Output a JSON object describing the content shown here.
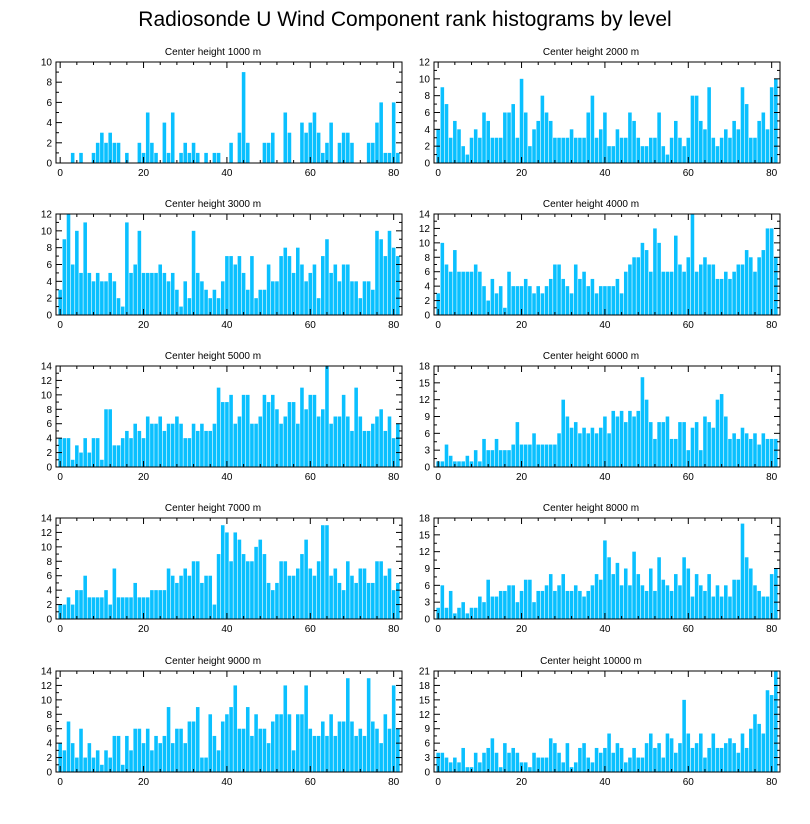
{
  "title": "Radiosonde U Wind Component rank histograms by level",
  "colors": {
    "bar": "#0ac0ff",
    "axis": "#000000",
    "background": "#ffffff"
  },
  "chart_data": [
    {
      "type": "bar",
      "title": "Center height 1000 m",
      "xlim": [
        -1,
        82
      ],
      "ylim": [
        0,
        10
      ],
      "xticks": [
        0,
        20,
        40,
        60,
        80
      ],
      "yticks": [
        0,
        2,
        4,
        6,
        8,
        10
      ],
      "values": [
        0,
        0,
        0,
        1,
        0,
        1,
        0,
        0,
        1,
        2,
        3,
        2,
        3,
        2,
        2,
        0,
        1,
        0,
        0,
        2,
        1,
        5,
        2,
        1,
        0,
        4,
        1,
        5,
        0,
        1,
        2,
        1,
        2,
        1,
        0,
        1,
        0,
        1,
        1,
        0,
        0,
        2,
        0,
        3,
        9,
        2,
        0,
        0,
        0,
        2,
        2,
        3,
        0,
        0,
        5,
        3,
        0,
        0,
        4,
        3,
        4,
        5,
        3,
        1,
        2,
        4,
        0,
        2,
        3,
        3,
        2,
        0,
        0,
        0,
        2,
        2,
        4,
        6,
        1,
        1,
        6,
        1
      ]
    },
    {
      "type": "bar",
      "title": "Center height 2000 m",
      "xlim": [
        -1,
        82
      ],
      "ylim": [
        0,
        12
      ],
      "xticks": [
        0,
        20,
        40,
        60,
        80
      ],
      "yticks": [
        0,
        2,
        4,
        6,
        8,
        10,
        12
      ],
      "values": [
        4,
        9,
        7,
        3,
        5,
        4,
        2,
        1,
        3,
        4,
        3,
        6,
        5,
        3,
        3,
        3,
        6,
        6,
        7,
        3,
        10,
        6,
        2,
        4,
        5,
        8,
        6,
        5,
        3,
        3,
        3,
        3,
        4,
        3,
        3,
        3,
        6,
        8,
        3,
        4,
        6,
        2,
        2,
        4,
        3,
        3,
        6,
        5,
        3,
        2,
        2,
        3,
        3,
        6,
        2,
        1,
        3,
        5,
        3,
        2,
        3,
        8,
        8,
        5,
        4,
        9,
        3,
        2,
        3,
        4,
        3,
        5,
        4,
        9,
        7,
        3,
        3,
        5,
        6,
        4,
        9,
        10
      ]
    },
    {
      "type": "bar",
      "title": "Center height 3000 m",
      "xlim": [
        -1,
        82
      ],
      "ylim": [
        0,
        12
      ],
      "xticks": [
        0,
        20,
        40,
        60,
        80
      ],
      "yticks": [
        0,
        2,
        4,
        6,
        8,
        10,
        12
      ],
      "values": [
        3,
        9,
        12,
        6,
        10,
        5,
        11,
        5,
        4,
        5,
        4,
        4,
        5,
        4,
        2,
        1,
        11,
        5,
        6,
        10,
        5,
        5,
        5,
        5,
        6,
        5,
        4,
        5,
        3,
        1,
        4,
        2,
        10,
        5,
        4,
        3,
        2,
        3,
        2,
        4,
        7,
        7,
        6,
        7,
        5,
        3,
        7,
        2,
        3,
        3,
        6,
        4,
        4,
        7,
        8,
        7,
        5,
        8,
        6,
        4,
        5,
        6,
        2,
        7,
        9,
        5,
        6,
        4,
        6,
        6,
        4,
        4,
        2,
        4,
        4,
        3,
        10,
        9,
        7,
        10,
        8,
        7
      ]
    },
    {
      "type": "bar",
      "title": "Center height 4000 m",
      "xlim": [
        -1,
        82
      ],
      "ylim": [
        0,
        14
      ],
      "xticks": [
        0,
        20,
        40,
        60,
        80
      ],
      "yticks": [
        0,
        2,
        4,
        6,
        8,
        10,
        12,
        14
      ],
      "values": [
        3,
        10,
        7,
        6,
        9,
        6,
        6,
        6,
        6,
        7,
        6,
        4,
        2,
        5,
        3,
        4,
        1,
        6,
        4,
        4,
        4,
        5,
        4,
        3,
        4,
        3,
        4,
        5,
        7,
        7,
        5,
        4,
        3,
        7,
        5,
        6,
        4,
        5,
        3,
        4,
        4,
        4,
        4,
        5,
        3,
        6,
        7,
        8,
        8,
        10,
        9,
        6,
        12,
        10,
        6,
        6,
        6,
        11,
        7,
        6,
        8,
        14,
        6,
        7,
        8,
        7,
        7,
        5,
        5,
        6,
        5,
        6,
        7,
        7,
        9,
        8,
        6,
        8,
        9,
        12,
        12,
        8
      ]
    },
    {
      "type": "bar",
      "title": "Center height 5000 m",
      "xlim": [
        -1,
        82
      ],
      "ylim": [
        0,
        14
      ],
      "xticks": [
        0,
        20,
        40,
        60,
        80
      ],
      "yticks": [
        0,
        2,
        4,
        6,
        8,
        10,
        12,
        14
      ],
      "values": [
        4,
        4,
        4,
        1,
        3,
        2,
        4,
        2,
        4,
        4,
        1,
        8,
        8,
        3,
        3,
        4,
        5,
        4,
        6,
        5,
        4,
        7,
        6,
        6,
        7,
        5,
        6,
        6,
        7,
        6,
        4,
        4,
        6,
        5,
        6,
        5,
        5,
        6,
        11,
        9,
        9,
        10,
        6,
        7,
        10,
        10,
        6,
        6,
        7,
        10,
        9,
        10,
        8,
        6,
        7,
        9,
        9,
        6,
        11,
        8,
        10,
        10,
        7,
        8,
        14,
        6,
        7,
        7,
        10,
        7,
        5,
        11,
        7,
        5,
        5,
        6,
        7,
        8,
        5,
        7,
        4,
        6
      ]
    },
    {
      "type": "bar",
      "title": "Center height 6000 m",
      "xlim": [
        -1,
        82
      ],
      "ylim": [
        0,
        18
      ],
      "xticks": [
        0,
        20,
        40,
        60,
        80
      ],
      "yticks": [
        0,
        3,
        6,
        9,
        12,
        15,
        18
      ],
      "values": [
        1,
        1,
        4,
        2,
        1,
        1,
        1,
        2,
        1,
        3,
        1,
        5,
        3,
        3,
        5,
        3,
        3,
        3,
        4,
        8,
        4,
        4,
        4,
        6,
        4,
        4,
        4,
        4,
        4,
        6,
        12,
        9,
        7,
        8,
        6,
        7,
        6,
        7,
        6,
        7,
        9,
        6,
        10,
        9,
        10,
        8,
        10,
        9,
        10,
        16,
        12,
        8,
        5,
        8,
        8,
        9,
        5,
        5,
        8,
        8,
        3,
        7,
        8,
        3,
        9,
        8,
        7,
        12,
        13,
        9,
        5,
        6,
        5,
        7,
        6,
        5,
        6,
        4,
        6,
        5,
        5,
        5
      ]
    },
    {
      "type": "bar",
      "title": "Center height 7000 m",
      "xlim": [
        -1,
        82
      ],
      "ylim": [
        0,
        14
      ],
      "xticks": [
        0,
        20,
        40,
        60,
        80
      ],
      "yticks": [
        0,
        2,
        4,
        6,
        8,
        10,
        12,
        14
      ],
      "values": [
        2,
        2,
        3,
        2,
        4,
        4,
        6,
        3,
        3,
        3,
        3,
        4,
        2,
        7,
        3,
        3,
        3,
        3,
        5,
        3,
        3,
        3,
        4,
        4,
        4,
        4,
        7,
        6,
        5,
        6,
        7,
        6,
        8,
        8,
        5,
        6,
        6,
        2,
        9,
        13,
        12,
        8,
        12,
        11,
        9,
        8,
        8,
        10,
        11,
        9,
        5,
        4,
        5,
        8,
        8,
        6,
        6,
        7,
        9,
        11,
        7,
        6,
        8,
        13,
        13,
        6,
        7,
        5,
        4,
        8,
        6,
        5,
        7,
        7,
        5,
        5,
        8,
        8,
        6,
        7,
        4,
        5
      ]
    },
    {
      "type": "bar",
      "title": "Center height 8000 m",
      "xlim": [
        -1,
        82
      ],
      "ylim": [
        0,
        18
      ],
      "xticks": [
        0,
        20,
        40,
        60,
        80
      ],
      "yticks": [
        0,
        3,
        6,
        9,
        12,
        15,
        18
      ],
      "values": [
        2,
        6,
        2,
        5,
        1,
        2,
        3,
        1,
        2,
        2,
        4,
        3,
        7,
        4,
        4,
        5,
        5,
        6,
        6,
        3,
        5,
        7,
        7,
        3,
        5,
        5,
        6,
        8,
        5,
        6,
        8,
        5,
        5,
        6,
        5,
        4,
        5,
        6,
        8,
        7,
        14,
        11,
        8,
        10,
        6,
        9,
        6,
        12,
        8,
        6,
        5,
        9,
        5,
        11,
        7,
        6,
        5,
        8,
        6,
        11,
        9,
        4,
        8,
        6,
        5,
        8,
        4,
        6,
        4,
        6,
        4,
        7,
        7,
        17,
        11,
        9,
        6,
        5,
        4,
        4,
        8,
        9
      ]
    },
    {
      "type": "bar",
      "title": "Center height 9000 m",
      "xlim": [
        -1,
        82
      ],
      "ylim": [
        0,
        14
      ],
      "xticks": [
        0,
        20,
        40,
        60,
        80
      ],
      "yticks": [
        0,
        2,
        4,
        6,
        8,
        10,
        12,
        14
      ],
      "values": [
        4,
        3,
        7,
        4,
        2,
        6,
        2,
        4,
        2,
        3,
        1,
        3,
        2,
        5,
        5,
        1,
        5,
        3,
        6,
        6,
        4,
        6,
        3,
        5,
        4,
        5,
        9,
        4,
        6,
        6,
        4,
        7,
        7,
        9,
        2,
        2,
        8,
        5,
        3,
        7,
        8,
        9,
        12,
        6,
        6,
        9,
        5,
        8,
        6,
        6,
        4,
        7,
        8,
        8,
        12,
        8,
        3,
        8,
        8,
        12,
        6,
        5,
        5,
        7,
        5,
        8,
        5,
        7,
        7,
        13,
        7,
        5,
        6,
        5,
        13,
        7,
        6,
        4,
        8,
        6,
        12,
        6
      ]
    },
    {
      "type": "bar",
      "title": "Center height 10000 m",
      "xlim": [
        -1,
        82
      ],
      "ylim": [
        0,
        21
      ],
      "xticks": [
        0,
        20,
        40,
        60,
        80
      ],
      "yticks": [
        0,
        3,
        6,
        9,
        12,
        15,
        18,
        21
      ],
      "values": [
        4,
        4,
        3,
        2,
        3,
        2,
        5,
        1,
        1,
        4,
        2,
        4,
        5,
        7,
        4,
        1,
        6,
        4,
        5,
        4,
        2,
        2,
        1,
        4,
        3,
        3,
        3,
        7,
        6,
        4,
        2,
        6,
        1,
        2,
        5,
        6,
        3,
        2,
        5,
        4,
        5,
        8,
        4,
        6,
        5,
        2,
        3,
        5,
        3,
        3,
        6,
        8,
        5,
        6,
        3,
        8,
        7,
        4,
        6,
        15,
        8,
        5,
        6,
        8,
        3,
        5,
        8,
        5,
        5,
        6,
        7,
        6,
        4,
        8,
        5,
        9,
        12,
        10,
        8,
        17,
        16,
        21
      ]
    }
  ]
}
